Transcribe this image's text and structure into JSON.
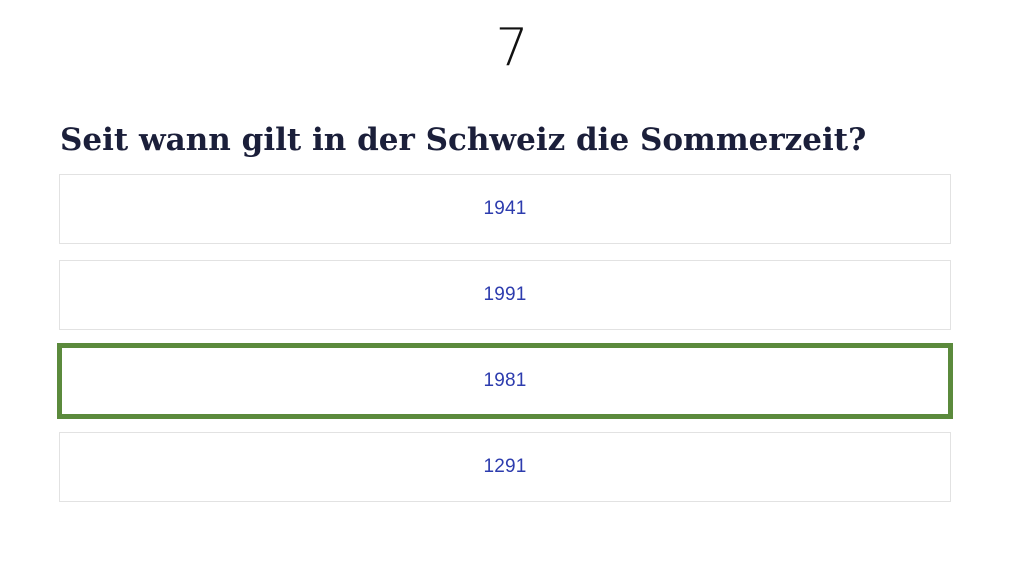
{
  "quiz": {
    "question_number": "7",
    "question": "Seit wann gilt in der Schweiz die Sommerzeit?",
    "answers": [
      {
        "label": "1941",
        "selected": false
      },
      {
        "label": "1991",
        "selected": false
      },
      {
        "label": "1981",
        "selected": true
      },
      {
        "label": "1291",
        "selected": false
      }
    ],
    "colors": {
      "selected_border": "#5b8a3c",
      "answer_text": "#2d3cae",
      "question_text": "#1b1f3a"
    }
  }
}
